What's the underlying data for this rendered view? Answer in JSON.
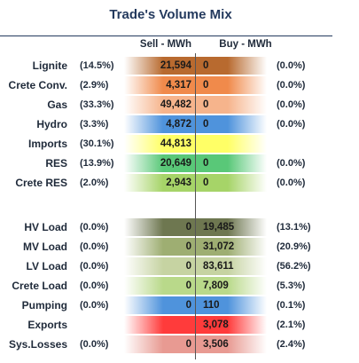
{
  "title": "Trade's Volume Mix",
  "columns": {
    "sell": "Sell - MWh",
    "buy": "Buy - MWh"
  },
  "chart_data": {
    "type": "table",
    "title": "Trade's Volume Mix",
    "columns": [
      "Sell - MWh",
      "Buy - MWh"
    ],
    "rows": [
      {
        "label": "Lignite",
        "sell_pct": "(14.5%)",
        "sell": "21,594",
        "buy": "0",
        "buy_pct": "(0.0%)",
        "color": "#b86a2f"
      },
      {
        "label": "Crete Conv.",
        "sell_pct": "(2.9%)",
        "sell": "4,317",
        "buy": "0",
        "buy_pct": "(0.0%)",
        "color": "#f08a4b"
      },
      {
        "label": "Gas",
        "sell_pct": "(33.3%)",
        "sell": "49,482",
        "buy": "0",
        "buy_pct": "(0.0%)",
        "color": "#f6b48c"
      },
      {
        "label": "Hydro",
        "sell_pct": "(3.3%)",
        "sell": "4,872",
        "buy": "0",
        "buy_pct": "(0.0%)",
        "color": "#4f93dc"
      },
      {
        "label": "Imports",
        "sell_pct": "(30.1%)",
        "sell": "44,813",
        "buy": "",
        "buy_pct": "",
        "color": "#ffff66"
      },
      {
        "label": "RES",
        "sell_pct": "(13.9%)",
        "sell": "20,649",
        "buy": "0",
        "buy_pct": "(0.0%)",
        "color": "#59c878"
      },
      {
        "label": "Crete RES",
        "sell_pct": "(2.0%)",
        "sell": "2,943",
        "buy": "0",
        "buy_pct": "(0.0%)",
        "color": "#a6d468"
      },
      {
        "label": "",
        "sell_pct": "",
        "sell": "",
        "buy": "",
        "buy_pct": "",
        "color": ""
      },
      {
        "label": "HV Load",
        "sell_pct": "(0.0%)",
        "sell": "0",
        "buy": "19,485",
        "buy_pct": "(13.1%)",
        "color": "#6e7750"
      },
      {
        "label": "MV Load",
        "sell_pct": "(0.0%)",
        "sell": "0",
        "buy": "31,072",
        "buy_pct": "(20.9%)",
        "color": "#9eae72"
      },
      {
        "label": "LV Load",
        "sell_pct": "(0.0%)",
        "sell": "0",
        "buy": "83,611",
        "buy_pct": "(56.2%)",
        "color": "#c6d3a2"
      },
      {
        "label": "Crete Load",
        "sell_pct": "(0.0%)",
        "sell": "0",
        "buy": "7,809",
        "buy_pct": "(5.3%)",
        "color": "#b9d98a"
      },
      {
        "label": "Pumping",
        "sell_pct": "(0.0%)",
        "sell": "0",
        "buy": "110",
        "buy_pct": "(0.1%)",
        "color": "#4f93dc"
      },
      {
        "label": "Exports",
        "sell_pct": "",
        "sell": "",
        "buy": "3,078",
        "buy_pct": "(2.1%)",
        "color": "#ff3b3b"
      },
      {
        "label": "Sys.Losses",
        "sell_pct": "(0.0%)",
        "sell": "0",
        "buy": "3,506",
        "buy_pct": "(2.4%)",
        "color": "#e89a92"
      }
    ]
  }
}
